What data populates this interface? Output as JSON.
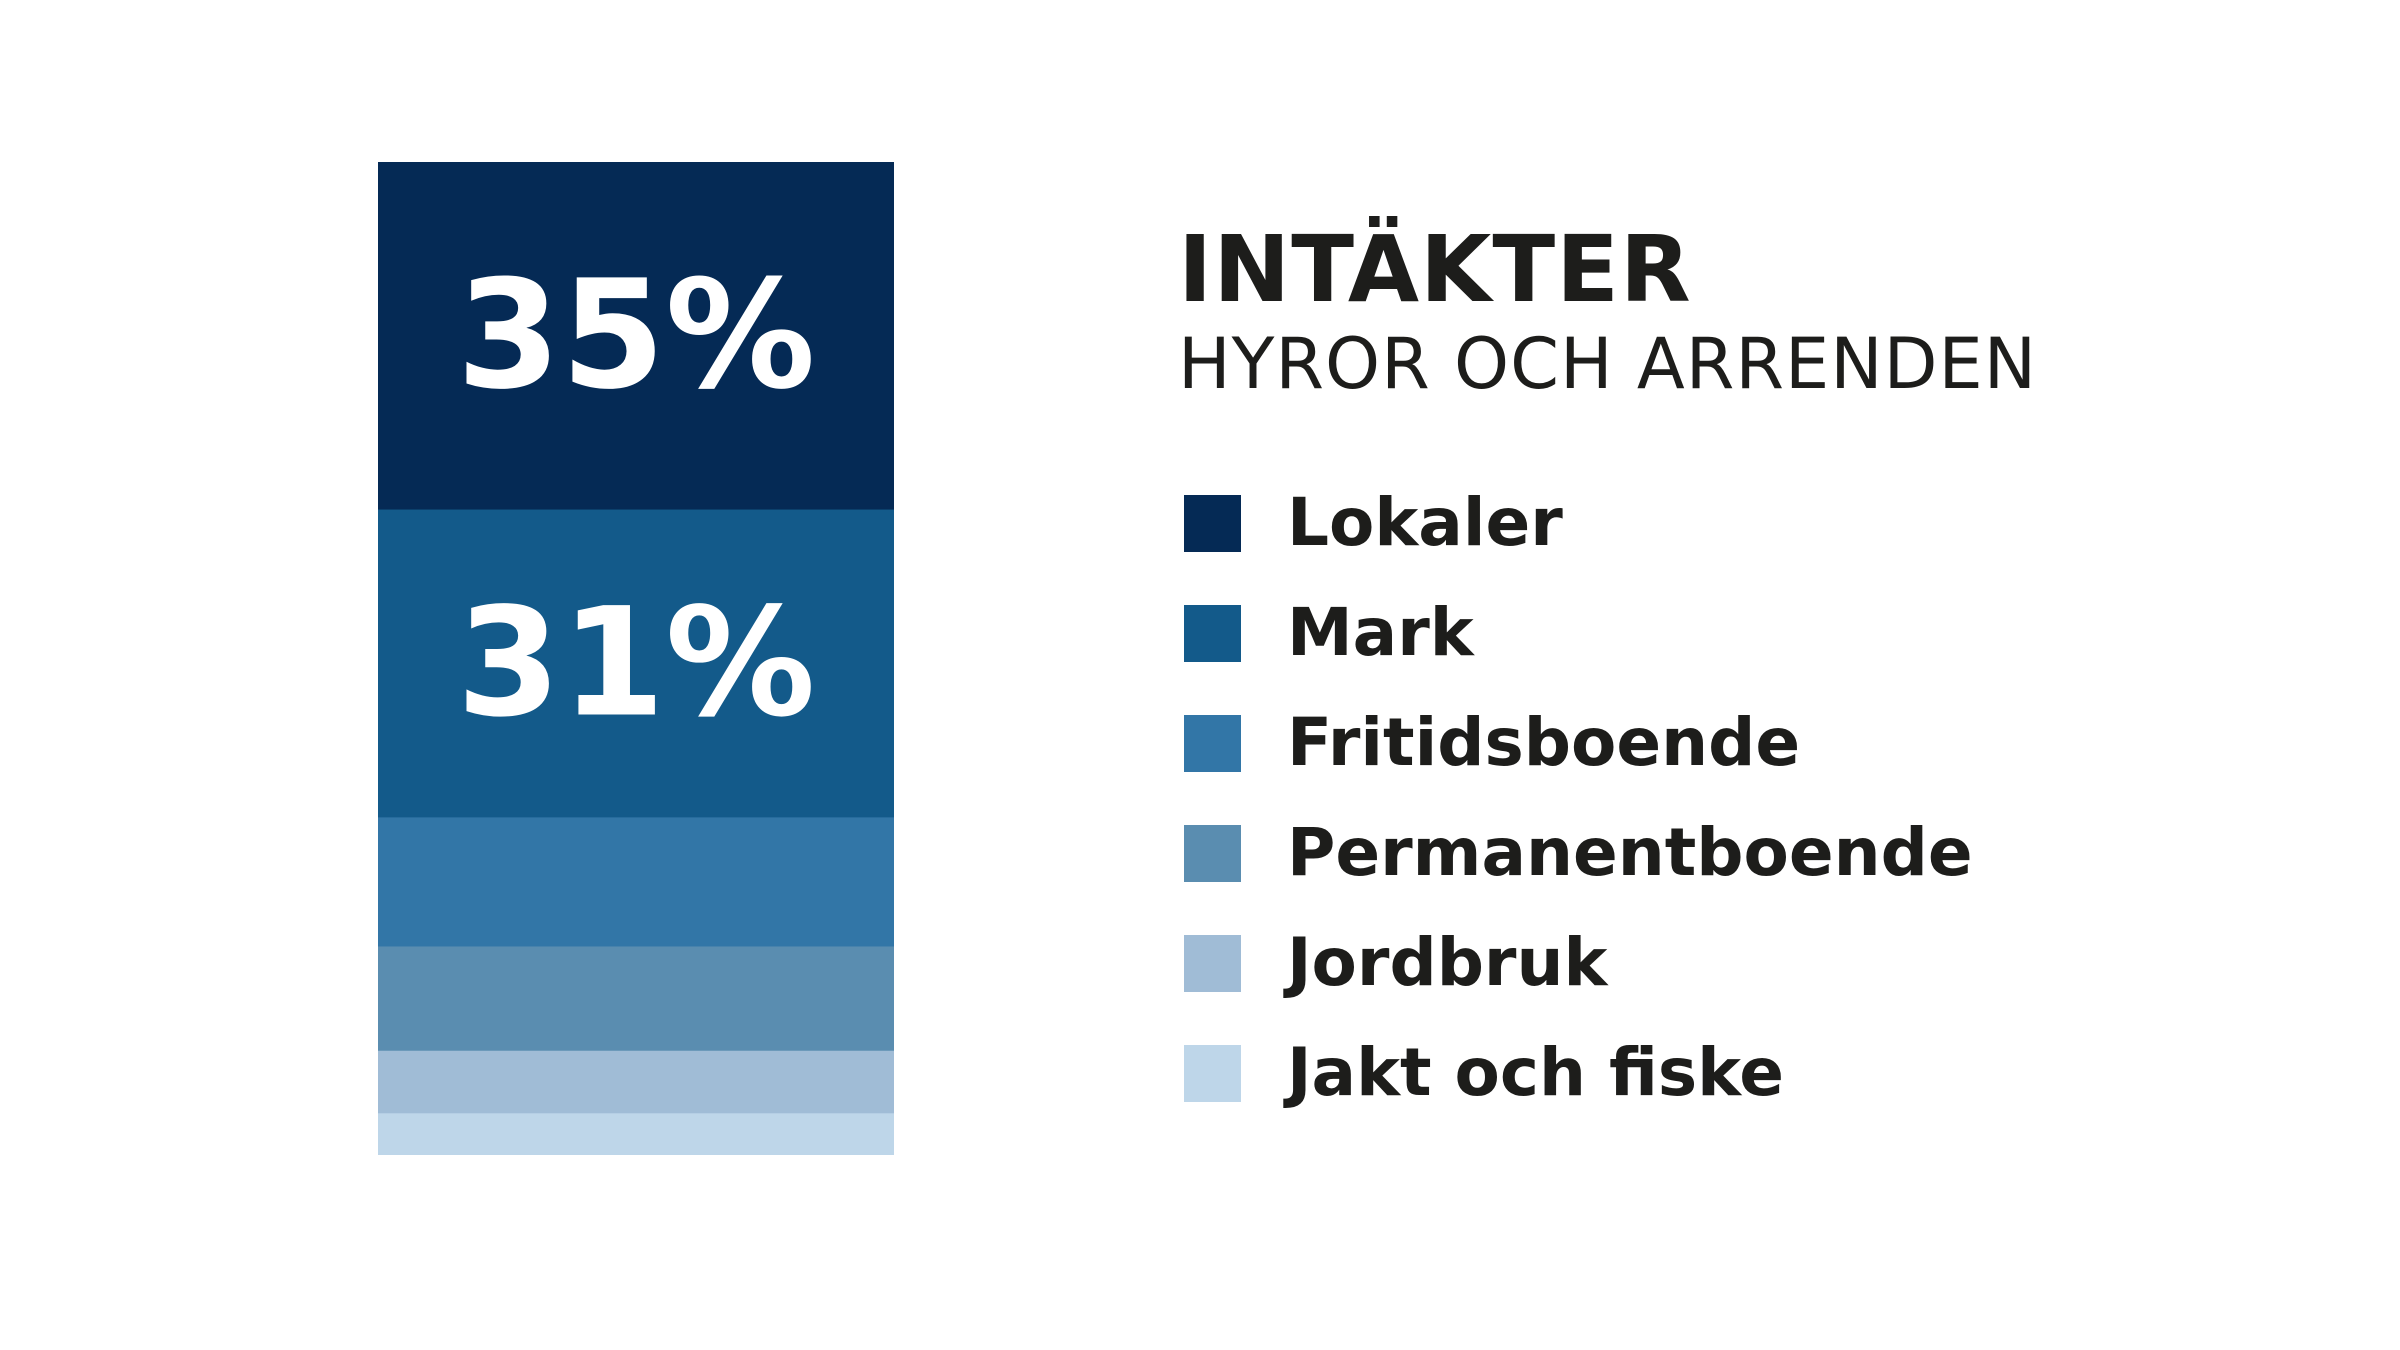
{
  "chart_data": {
    "type": "bar",
    "stacked": true,
    "orientation": "vertical-stack",
    "title": "INTÄKTER",
    "subtitle": "HYROR OCH ARRENDEN",
    "value_format": "{v}%",
    "series": [
      {
        "name": "Lokaler",
        "value": 35,
        "label": "35%",
        "color": "#052a55"
      },
      {
        "name": "Mark",
        "value": 31,
        "label": "31%",
        "color": "#135a8a"
      },
      {
        "name": "Fritidsboende",
        "value": 13,
        "label": "",
        "color": "#3276a7"
      },
      {
        "name": "Permanentboende",
        "value": 10.5,
        "label": "",
        "color": "#5a8db0"
      },
      {
        "name": "Jordbruk",
        "value": 6.3,
        "label": "",
        "color": "#a0bcd6"
      },
      {
        "name": "Jakt och fiske",
        "value": 4.2,
        "label": "",
        "color": "#bed6e9"
      }
    ],
    "legend_position": "right",
    "grid": false
  },
  "colors": {
    "text": "#1d1d1b",
    "segment_label": "#ffffff",
    "background": "#ffffff"
  }
}
